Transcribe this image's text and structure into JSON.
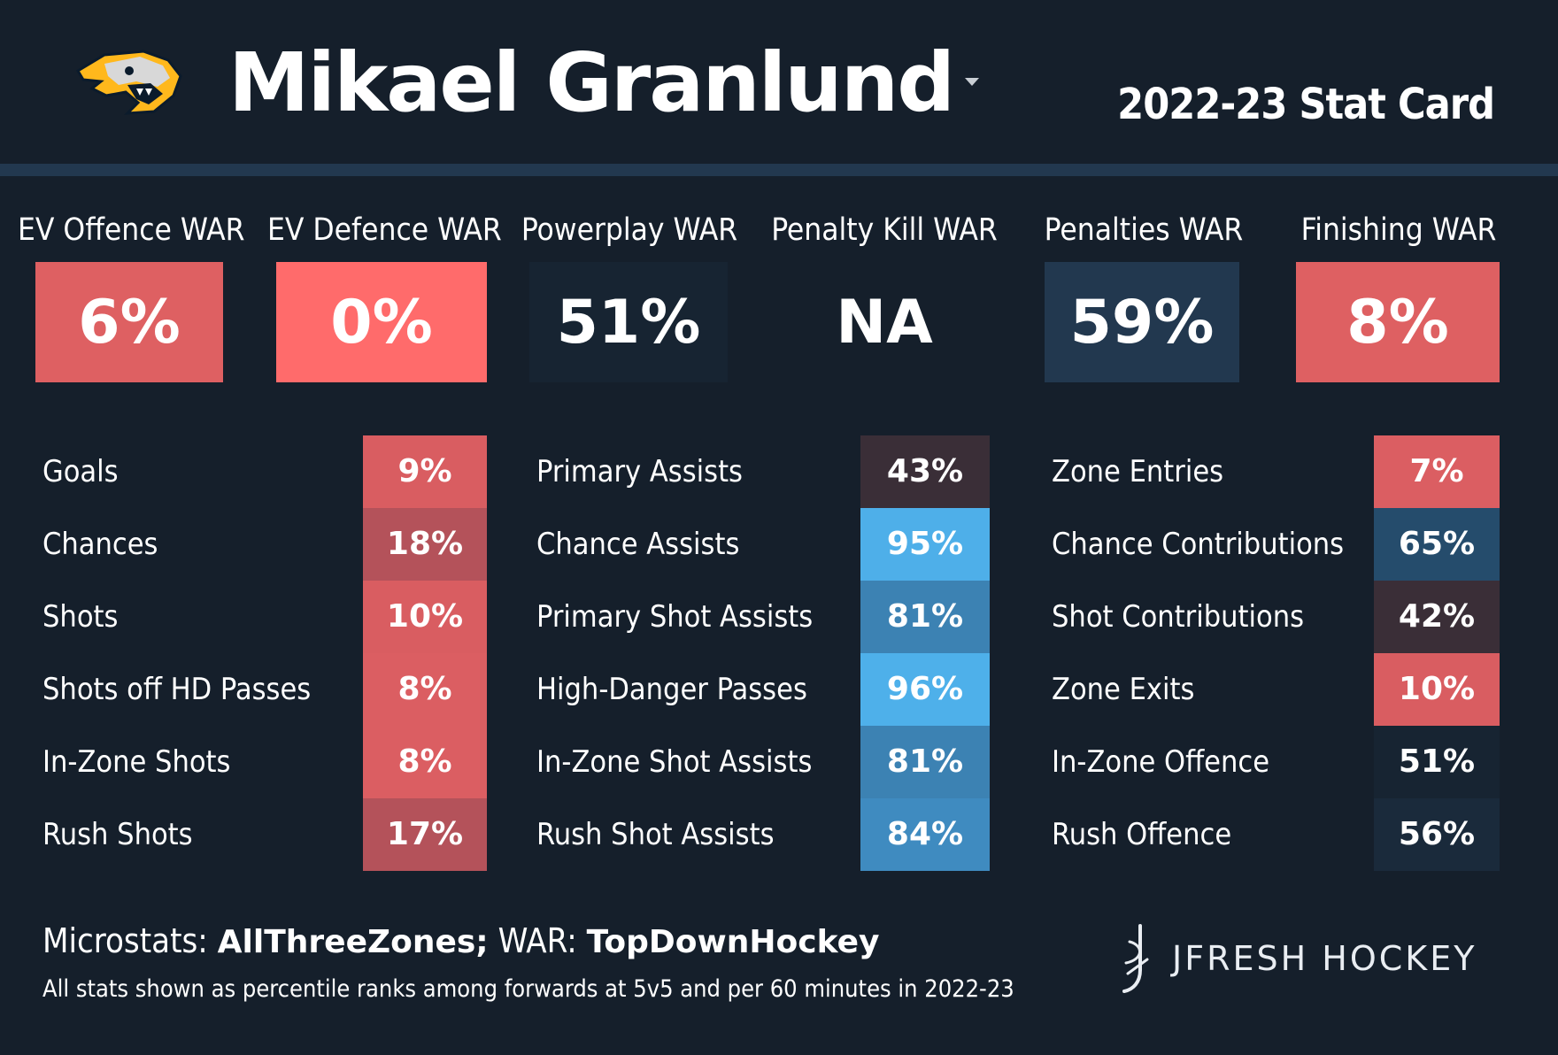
{
  "header": {
    "player_name": "Mikael Granlund",
    "season_title": "2022-23 Stat Card"
  },
  "colors": {
    "background": "#151f2b",
    "header_bar": "#22384f",
    "scale_low_strong": "#ff6b6b",
    "scale_low": "#de6062",
    "scale_low_muted": "#b4525a",
    "scale_mid": "#172432",
    "scale_high": "#4eafe9"
  },
  "war": [
    {
      "label": "EV Offence WAR",
      "value": "6%",
      "color": "#de6062"
    },
    {
      "label": "EV Defence WAR",
      "value": "0%",
      "color": "#ff6b6b"
    },
    {
      "label": "Powerplay WAR",
      "value": "51%",
      "color": "#172432"
    },
    {
      "label": "Penalty Kill WAR",
      "value": "NA",
      "color": "#151f2b"
    },
    {
      "label": "Penalties WAR",
      "value": "59%",
      "color": "#22384f"
    },
    {
      "label": "Finishing WAR",
      "value": "8%",
      "color": "#de6062"
    }
  ],
  "stats": {
    "col1": [
      {
        "label": "Goals",
        "value": "9%",
        "color": "#d95d61"
      },
      {
        "label": "Chances",
        "value": "18%",
        "color": "#b4525a"
      },
      {
        "label": "Shots",
        "value": "10%",
        "color": "#d95d61"
      },
      {
        "label": "Shots off HD Passes",
        "value": "8%",
        "color": "#db5e62"
      },
      {
        "label": "In-Zone Shots",
        "value": "8%",
        "color": "#db5e62"
      },
      {
        "label": "Rush Shots",
        "value": "17%",
        "color": "#b4525a"
      }
    ],
    "col2": [
      {
        "label": "Primary Assists",
        "value": "43%",
        "color": "#3a2e37"
      },
      {
        "label": "Chance Assists",
        "value": "95%",
        "color": "#4eafe9"
      },
      {
        "label": "Primary Shot Assists",
        "value": "81%",
        "color": "#3c82b3"
      },
      {
        "label": "High-Danger Passes",
        "value": "96%",
        "color": "#4eb0ea"
      },
      {
        "label": "In-Zone Shot Assists",
        "value": "81%",
        "color": "#3c82b3"
      },
      {
        "label": "Rush Shot Assists",
        "value": "84%",
        "color": "#3f8bc0"
      }
    ],
    "col3": [
      {
        "label": "Zone Entries",
        "value": "7%",
        "color": "#db5e62"
      },
      {
        "label": "Chance Contributions",
        "value": "65%",
        "color": "#254c6c"
      },
      {
        "label": "Shot Contributions",
        "value": "42%",
        "color": "#3a2e37"
      },
      {
        "label": "Zone Exits",
        "value": "10%",
        "color": "#d95d61"
      },
      {
        "label": "In-Zone Offence",
        "value": "51%",
        "color": "#172432"
      },
      {
        "label": "Rush Offence",
        "value": "56%",
        "color": "#1a2a3b"
      }
    ]
  },
  "footer": {
    "microstats_prefix": "Microstats:",
    "microstats_source": "AllThreeZones;",
    "war_prefix": "WAR:",
    "war_source": "TopDownHockey",
    "note": "All stats shown as percentile ranks among forwards at 5v5 and per 60 minutes in 2022-23",
    "brand": "JFRESH HOCKEY"
  },
  "icons": {
    "team_logo": "predators-logo-icon",
    "dropdown": "caret-down-icon",
    "brand": "jfresh-logo-icon"
  }
}
